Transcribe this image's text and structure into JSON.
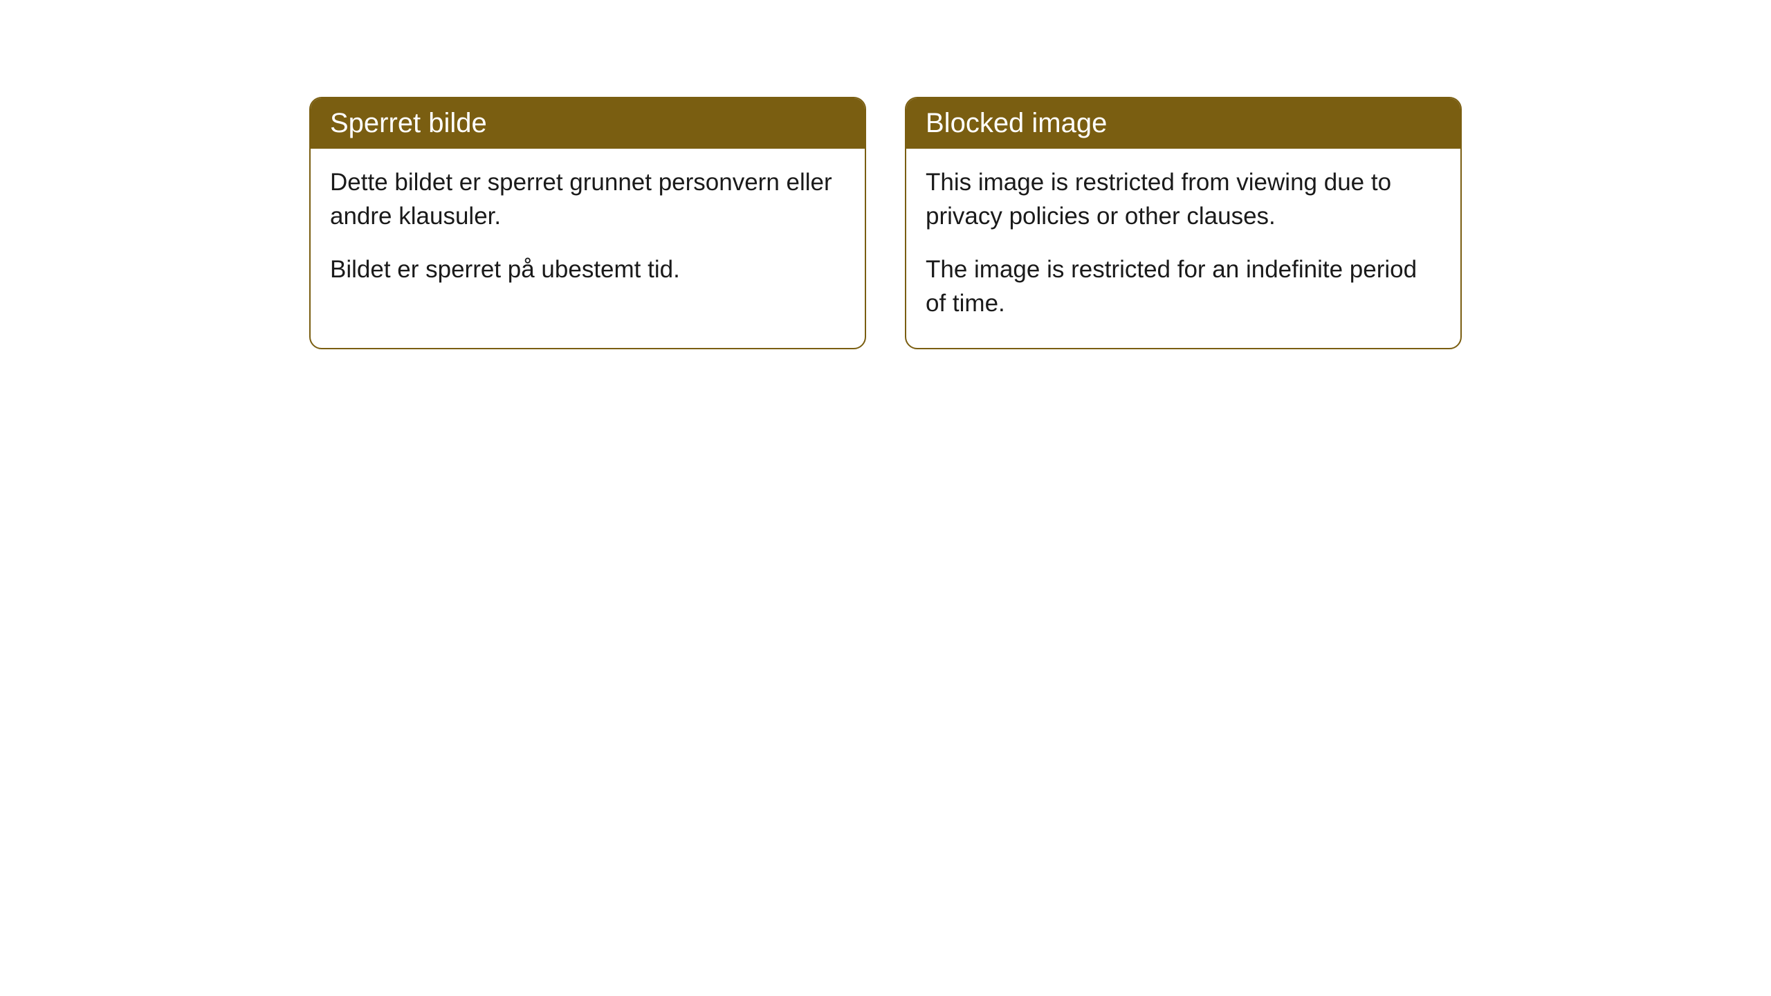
{
  "cards": [
    {
      "header": "Sperret bilde",
      "paragraph1": "Dette bildet er sperret grunnet personvern eller andre klausuler.",
      "paragraph2": "Bildet er sperret på ubestemt tid."
    },
    {
      "header": "Blocked image",
      "paragraph1": "This image is restricted from viewing due to privacy policies or other clauses.",
      "paragraph2": "The image is restricted for an indefinite period of time."
    }
  ],
  "styling": {
    "card_border_color": "#7a5e11",
    "card_border_width": 2,
    "card_border_radius": 18,
    "header_bg_color": "#7a5e11",
    "header_text_color": "#ffffff",
    "header_fontsize": 40,
    "body_bg_color": "#ffffff",
    "body_text_color": "#1a1a1a",
    "body_fontsize": 35,
    "gap_between_cards": 56
  }
}
